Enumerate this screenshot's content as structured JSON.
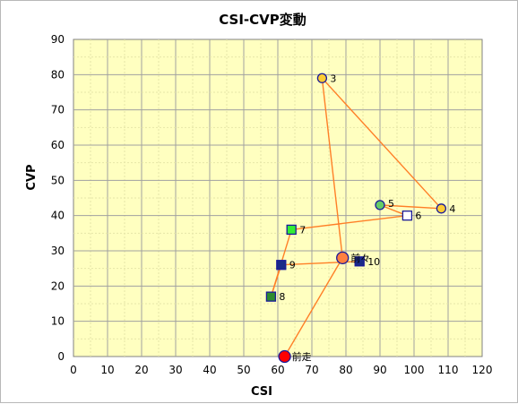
{
  "chart_data": {
    "type": "scatter",
    "title": "CSI-CVP変動",
    "xlabel": "CSI",
    "ylabel": "CVP",
    "xlim": [
      0,
      120
    ],
    "ylim": [
      0,
      90
    ],
    "xticks": [
      0,
      10,
      20,
      30,
      40,
      50,
      60,
      70,
      80,
      90,
      100,
      110,
      120
    ],
    "yticks": [
      0,
      10,
      20,
      30,
      40,
      50,
      60,
      70,
      80,
      90
    ],
    "grid": true,
    "colors": {
      "plot_bg": "#ffffc0",
      "grid_major": "#a0a0a0",
      "grid_minor": "#e6e6a8",
      "line": "#ff7f27"
    },
    "points": [
      {
        "label": "前走",
        "x": 62,
        "y": 0,
        "shape": "circle",
        "fill": "#ff0000",
        "size": 13,
        "dx": 8,
        "dy": 4
      },
      {
        "label": "前々",
        "x": 79,
        "y": 28,
        "shape": "circle",
        "fill": "#ff8040",
        "size": 13,
        "dx": 9,
        "dy": 4
      },
      {
        "label": "3",
        "x": 73,
        "y": 79,
        "shape": "circle",
        "fill": "#ffcc33",
        "size": 10,
        "dx": 9,
        "dy": 4
      },
      {
        "label": "4",
        "x": 108,
        "y": 42,
        "shape": "circle",
        "fill": "#ffcc33",
        "size": 10,
        "dx": 9,
        "dy": 4
      },
      {
        "label": "5",
        "x": 90,
        "y": 43,
        "shape": "circle",
        "fill": "#66cc66",
        "size": 10,
        "dx": 9,
        "dy": 2
      },
      {
        "label": "6",
        "x": 98,
        "y": 40,
        "shape": "square",
        "fill": "#ffffff",
        "size": 10,
        "dx": 9,
        "dy": 4
      },
      {
        "label": "7",
        "x": 64,
        "y": 36,
        "shape": "square",
        "fill": "#33ee33",
        "size": 10,
        "dx": 9,
        "dy": 4
      },
      {
        "label": "8",
        "x": 58,
        "y": 17,
        "shape": "square",
        "fill": "#2e8b2e",
        "size": 10,
        "dx": 9,
        "dy": 4
      },
      {
        "label": "9",
        "x": 61,
        "y": 26,
        "shape": "square",
        "fill": "#1a2a88",
        "size": 10,
        "dx": 9,
        "dy": 4
      },
      {
        "label": "10",
        "x": 84,
        "y": 27,
        "shape": "square",
        "fill": "#1a2a88",
        "size": 10,
        "dx": 9,
        "dy": 4
      }
    ]
  }
}
